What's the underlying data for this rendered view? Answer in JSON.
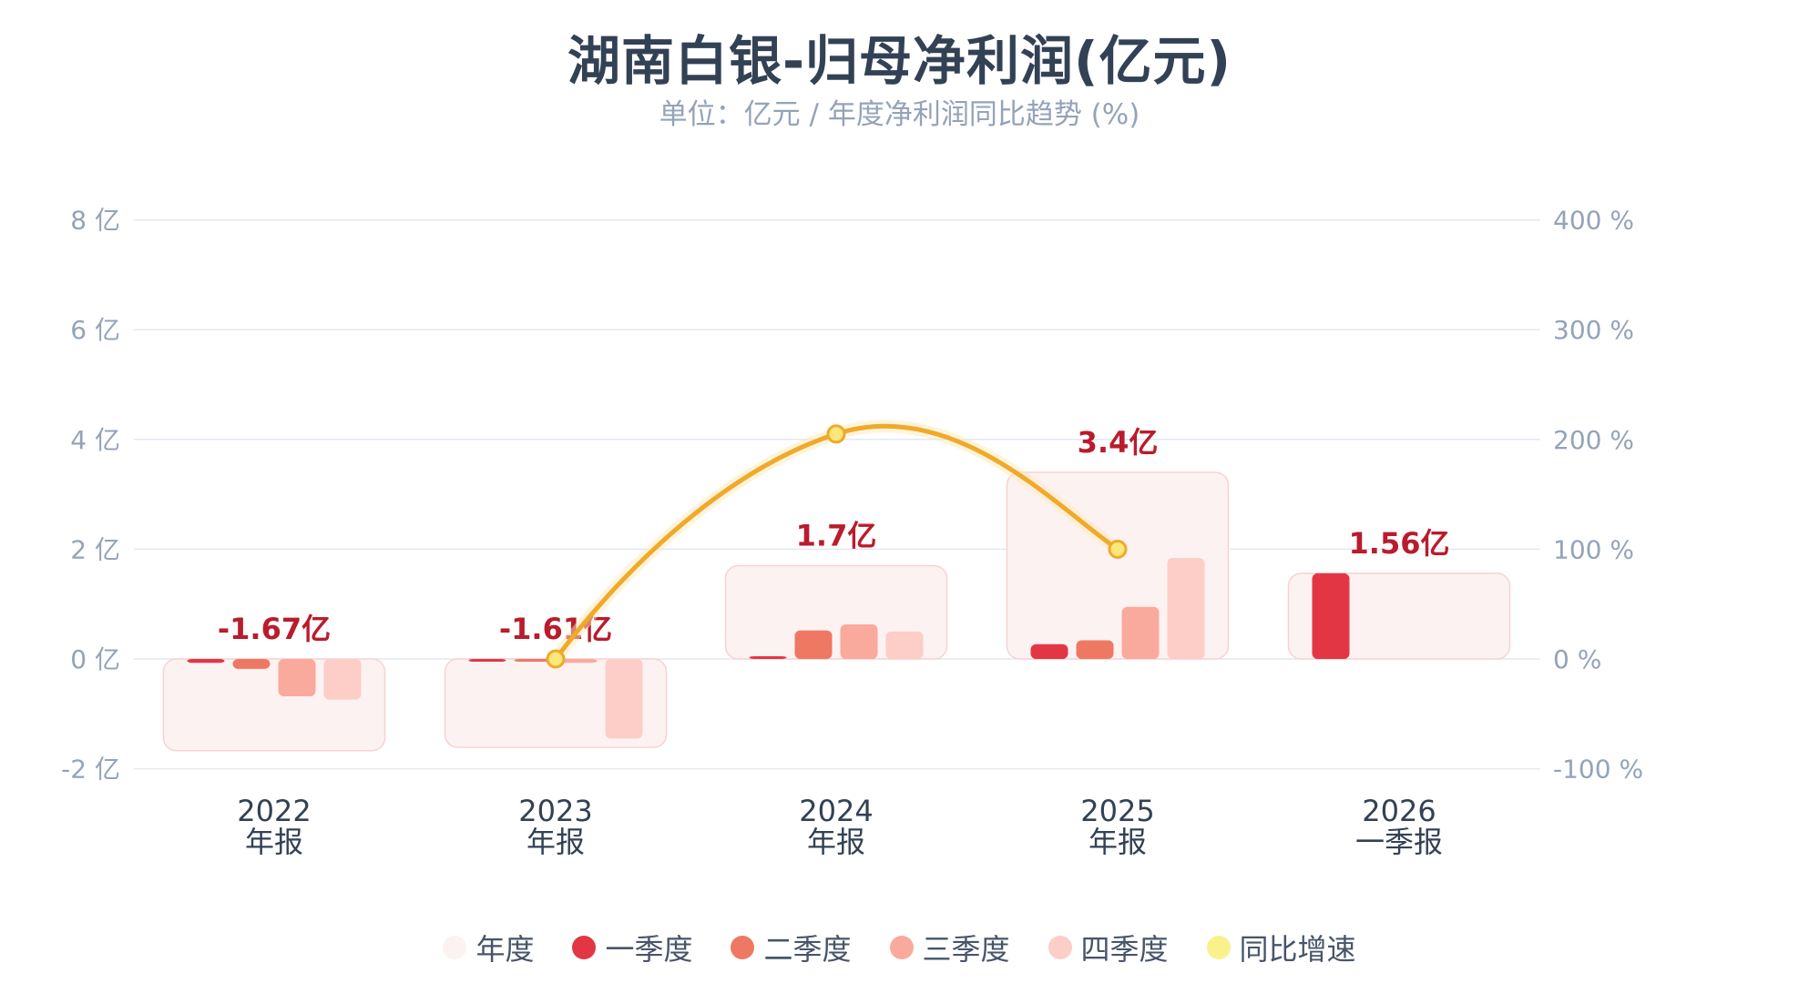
{
  "title": "湖南白银-归母净利润(亿元)",
  "subtitle": "单位：亿元 / 年度净利润同比趋势 (%)",
  "colors": {
    "annual_fill": "#fdf2f2",
    "annual_stroke": "#f6d3d3",
    "q1": "#e23645",
    "q2": "#ef7862",
    "q3": "#f9aa9c",
    "q4": "#fdcdc7",
    "yoy_line": "#f0a92a",
    "yoy_marker": "#fbe77a",
    "annual_label": "#b91c2c",
    "axis_text": "#94a3b8",
    "grid": "#e3e8f0",
    "category_text": "#334155"
  },
  "legend": [
    {
      "label": "年度",
      "color": "#fdf2f2"
    },
    {
      "label": "一季度",
      "color": "#e23645"
    },
    {
      "label": "二季度",
      "color": "#ef7862"
    },
    {
      "label": "三季度",
      "color": "#f9aa9c"
    },
    {
      "label": "四季度",
      "color": "#fdcdc7"
    },
    {
      "label": "同比增速",
      "color": "#fbf18c"
    }
  ],
  "chart_data": {
    "type": "bar",
    "title": "湖南白银-归母净利润(亿元)",
    "subtitle": "单位：亿元 / 年度净利润同比趋势 (%)",
    "categories": [
      "2022\n年报",
      "2023\n年报",
      "2024\n年报",
      "2025\n年报",
      "2026\n一季报"
    ],
    "category_lines": [
      [
        "2022",
        "年报"
      ],
      [
        "2023",
        "年报"
      ],
      [
        "2024",
        "年报"
      ],
      [
        "2025",
        "年报"
      ],
      [
        "2026",
        "一季报"
      ]
    ],
    "series": [
      {
        "name": "年度",
        "values": [
          -1.67,
          -1.61,
          1.7,
          3.4,
          1.56
        ]
      },
      {
        "name": "一季度",
        "values": [
          -0.07,
          -0.05,
          0.05,
          0.27,
          1.56
        ]
      },
      {
        "name": "二季度",
        "values": [
          -0.18,
          -0.04,
          0.52,
          0.34,
          null
        ]
      },
      {
        "name": "三季度",
        "values": [
          -0.68,
          -0.07,
          0.63,
          0.95,
          null
        ]
      },
      {
        "name": "四季度",
        "values": [
          -0.74,
          -1.45,
          0.5,
          1.84,
          null
        ]
      },
      {
        "name": "同比增速",
        "type": "line",
        "axis": "right",
        "values": [
          null,
          0,
          205,
          100,
          null
        ]
      }
    ],
    "annual_labels": [
      "-1.67亿",
      "-1.61亿",
      "1.7亿",
      "3.4亿",
      "1.56亿"
    ],
    "y_left": {
      "label": "亿",
      "ticks": [
        -2,
        0,
        2,
        4,
        6,
        8
      ],
      "tick_labels": [
        "-2 亿",
        "0 亿",
        "2 亿",
        "4 亿",
        "6 亿",
        "8 亿"
      ],
      "range": [
        -2,
        8
      ]
    },
    "y_right": {
      "label": "%",
      "ticks": [
        -100,
        0,
        100,
        200,
        300,
        400
      ],
      "tick_labels": [
        "-100 %",
        "0 %",
        "100 %",
        "200 %",
        "300 %",
        "400 %"
      ],
      "range": [
        -100,
        400
      ]
    },
    "grid": true,
    "legend_position": "bottom"
  }
}
